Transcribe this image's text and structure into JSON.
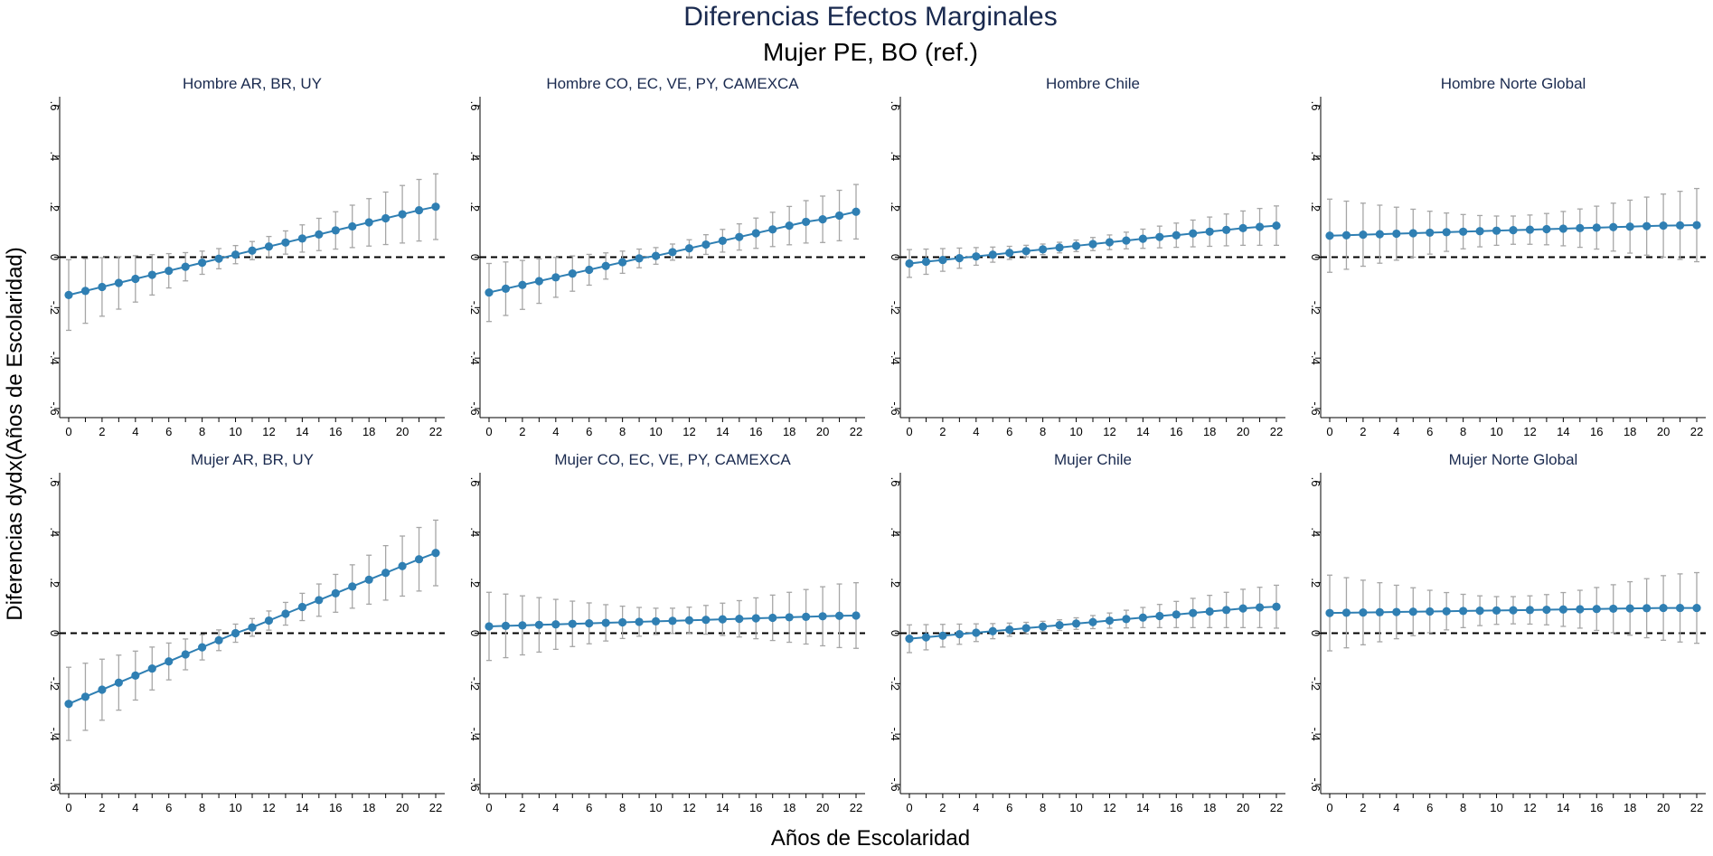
{
  "figure": {
    "title": "Diferencias Efectos Marginales",
    "subtitle": "Mujer PE, BO (ref.)",
    "xlabel": "Años de Escolaridad",
    "ylabel": "Diferencias dydx(Años de Escolaridad)"
  },
  "colors": {
    "marker": "#2f7fb3",
    "ci": "#a6a6a6",
    "title": "#1a2a4f",
    "reference_line": "#000000"
  },
  "chart_data": [
    {
      "type": "line",
      "title": "Hombre AR, BR, UY",
      "x": [
        0,
        1,
        2,
        3,
        4,
        5,
        6,
        7,
        8,
        9,
        10,
        11,
        12,
        13,
        14,
        15,
        16,
        17,
        18,
        19,
        20,
        21,
        22
      ],
      "y": [
        -0.15,
        -0.134,
        -0.118,
        -0.102,
        -0.086,
        -0.07,
        -0.054,
        -0.038,
        -0.022,
        -0.006,
        0.01,
        0.026,
        0.042,
        0.058,
        0.074,
        0.09,
        0.106,
        0.122,
        0.138,
        0.154,
        0.17,
        0.186,
        0.2
      ],
      "ci_halfwidth": [
        0.14,
        0.128,
        0.116,
        0.104,
        0.092,
        0.08,
        0.068,
        0.056,
        0.046,
        0.04,
        0.036,
        0.036,
        0.04,
        0.046,
        0.054,
        0.064,
        0.074,
        0.084,
        0.094,
        0.104,
        0.114,
        0.122,
        0.13
      ],
      "xlim": [
        0,
        22
      ],
      "xticks": [
        0,
        2,
        4,
        6,
        8,
        10,
        12,
        14,
        16,
        18,
        20,
        22
      ],
      "ylim": [
        -0.6,
        0.6
      ],
      "ytick_labels": [
        "-.6",
        "-.4",
        "-.2",
        "0",
        ".2",
        ".4",
        ".6"
      ],
      "reference_line": 0,
      "grid": false
    },
    {
      "type": "line",
      "title": "Hombre CO, EC, VE, PY, CAMEXCA",
      "x": [
        0,
        1,
        2,
        3,
        4,
        5,
        6,
        7,
        8,
        9,
        10,
        11,
        12,
        13,
        14,
        15,
        16,
        17,
        18,
        19,
        20,
        21,
        22
      ],
      "y": [
        -0.14,
        -0.125,
        -0.11,
        -0.095,
        -0.08,
        -0.065,
        -0.05,
        -0.035,
        -0.02,
        -0.005,
        0.005,
        0.02,
        0.035,
        0.05,
        0.065,
        0.08,
        0.095,
        0.11,
        0.125,
        0.14,
        0.15,
        0.165,
        0.18
      ],
      "ci_halfwidth": [
        0.115,
        0.106,
        0.097,
        0.088,
        0.079,
        0.07,
        0.061,
        0.052,
        0.044,
        0.037,
        0.033,
        0.032,
        0.034,
        0.039,
        0.045,
        0.052,
        0.06,
        0.068,
        0.076,
        0.084,
        0.092,
        0.1,
        0.108
      ],
      "xlim": [
        0,
        22
      ],
      "xticks": [
        0,
        2,
        4,
        6,
        8,
        10,
        12,
        14,
        16,
        18,
        20,
        22
      ],
      "ylim": [
        -0.6,
        0.6
      ],
      "ytick_labels": [
        "-.6",
        "-.4",
        "-.2",
        "0",
        ".2",
        ".4",
        ".6"
      ],
      "reference_line": 0,
      "grid": false
    },
    {
      "type": "line",
      "title": "Hombre Chile",
      "x": [
        0,
        1,
        2,
        3,
        4,
        5,
        6,
        7,
        8,
        9,
        10,
        11,
        12,
        13,
        14,
        15,
        16,
        17,
        18,
        19,
        20,
        21,
        22
      ],
      "y": [
        -0.025,
        -0.018,
        -0.011,
        -0.004,
        0.003,
        0.01,
        0.017,
        0.024,
        0.031,
        0.038,
        0.045,
        0.052,
        0.059,
        0.066,
        0.073,
        0.08,
        0.087,
        0.094,
        0.101,
        0.108,
        0.115,
        0.12,
        0.125
      ],
      "ci_halfwidth": [
        0.055,
        0.05,
        0.045,
        0.04,
        0.035,
        0.03,
        0.026,
        0.023,
        0.021,
        0.021,
        0.023,
        0.026,
        0.029,
        0.033,
        0.038,
        0.043,
        0.048,
        0.053,
        0.058,
        0.063,
        0.068,
        0.073,
        0.078
      ],
      "xlim": [
        0,
        22
      ],
      "xticks": [
        0,
        2,
        4,
        6,
        8,
        10,
        12,
        14,
        16,
        18,
        20,
        22
      ],
      "ylim": [
        -0.6,
        0.6
      ],
      "ytick_labels": [
        "-.6",
        "-.4",
        "-.2",
        "0",
        ".2",
        ".4",
        ".6"
      ],
      "reference_line": 0,
      "grid": false
    },
    {
      "type": "line",
      "title": "Hombre Norte Global",
      "x": [
        0,
        1,
        2,
        3,
        4,
        5,
        6,
        7,
        8,
        9,
        10,
        11,
        12,
        13,
        14,
        15,
        16,
        17,
        18,
        19,
        20,
        21,
        22
      ],
      "y": [
        0.085,
        0.087,
        0.089,
        0.091,
        0.093,
        0.095,
        0.097,
        0.099,
        0.101,
        0.103,
        0.105,
        0.107,
        0.109,
        0.111,
        0.113,
        0.115,
        0.117,
        0.119,
        0.121,
        0.123,
        0.125,
        0.126,
        0.127
      ],
      "ci_halfwidth": [
        0.145,
        0.135,
        0.125,
        0.115,
        0.105,
        0.095,
        0.085,
        0.076,
        0.068,
        0.062,
        0.058,
        0.056,
        0.058,
        0.062,
        0.068,
        0.076,
        0.085,
        0.095,
        0.105,
        0.115,
        0.125,
        0.135,
        0.145
      ],
      "xlim": [
        0,
        22
      ],
      "xticks": [
        0,
        2,
        4,
        6,
        8,
        10,
        12,
        14,
        16,
        18,
        20,
        22
      ],
      "ylim": [
        -0.6,
        0.6
      ],
      "ytick_labels": [
        "-.6",
        "-.4",
        "-.2",
        "0",
        ".2",
        ".4",
        ".6"
      ],
      "reference_line": 0,
      "grid": false
    },
    {
      "type": "line",
      "title": "Mujer AR, BR, UY",
      "x": [
        0,
        1,
        2,
        3,
        4,
        5,
        6,
        7,
        8,
        9,
        10,
        11,
        12,
        13,
        14,
        15,
        16,
        17,
        18,
        19,
        20,
        21,
        22
      ],
      "y": [
        -0.28,
        -0.252,
        -0.224,
        -0.196,
        -0.168,
        -0.14,
        -0.112,
        -0.084,
        -0.056,
        -0.028,
        0.0,
        0.023,
        0.05,
        0.077,
        0.104,
        0.131,
        0.158,
        0.185,
        0.212,
        0.239,
        0.266,
        0.293,
        0.318
      ],
      "ci_halfwidth": [
        0.145,
        0.133,
        0.121,
        0.109,
        0.097,
        0.085,
        0.073,
        0.061,
        0.05,
        0.041,
        0.036,
        0.035,
        0.038,
        0.045,
        0.054,
        0.064,
        0.075,
        0.086,
        0.097,
        0.108,
        0.119,
        0.126,
        0.13
      ],
      "xlim": [
        0,
        22
      ],
      "xticks": [
        0,
        2,
        4,
        6,
        8,
        10,
        12,
        14,
        16,
        18,
        20,
        22
      ],
      "ylim": [
        -0.6,
        0.6
      ],
      "ytick_labels": [
        "-.6",
        "-.4",
        "-.2",
        "0",
        ".2",
        ".4",
        ".6"
      ],
      "reference_line": 0,
      "grid": false
    },
    {
      "type": "line",
      "title": "Mujer CO, EC, VE, PY, CAMEXCA",
      "x": [
        0,
        1,
        2,
        3,
        4,
        5,
        6,
        7,
        8,
        9,
        10,
        11,
        12,
        13,
        14,
        15,
        16,
        17,
        18,
        19,
        20,
        21,
        22
      ],
      "y": [
        0.027,
        0.029,
        0.031,
        0.033,
        0.035,
        0.037,
        0.039,
        0.041,
        0.043,
        0.045,
        0.047,
        0.049,
        0.051,
        0.053,
        0.055,
        0.057,
        0.059,
        0.061,
        0.063,
        0.065,
        0.067,
        0.069,
        0.07
      ],
      "ci_halfwidth": [
        0.135,
        0.126,
        0.117,
        0.108,
        0.099,
        0.09,
        0.081,
        0.072,
        0.064,
        0.057,
        0.052,
        0.05,
        0.052,
        0.057,
        0.064,
        0.072,
        0.081,
        0.09,
        0.099,
        0.108,
        0.117,
        0.126,
        0.13
      ],
      "xlim": [
        0,
        22
      ],
      "xticks": [
        0,
        2,
        4,
        6,
        8,
        10,
        12,
        14,
        16,
        18,
        20,
        22
      ],
      "ylim": [
        -0.6,
        0.6
      ],
      "ytick_labels": [
        "-.6",
        "-.4",
        "-.2",
        "0",
        ".2",
        ".4",
        ".6"
      ],
      "reference_line": 0,
      "grid": false
    },
    {
      "type": "line",
      "title": "Mujer Chile",
      "x": [
        0,
        1,
        2,
        3,
        4,
        5,
        6,
        7,
        8,
        9,
        10,
        11,
        12,
        13,
        14,
        15,
        16,
        17,
        18,
        19,
        20,
        21,
        22
      ],
      "y": [
        -0.022,
        -0.016,
        -0.01,
        -0.004,
        0.002,
        0.008,
        0.014,
        0.02,
        0.026,
        0.032,
        0.038,
        0.044,
        0.05,
        0.056,
        0.062,
        0.068,
        0.074,
        0.08,
        0.086,
        0.092,
        0.098,
        0.102,
        0.105
      ],
      "ci_halfwidth": [
        0.055,
        0.05,
        0.045,
        0.04,
        0.035,
        0.03,
        0.026,
        0.023,
        0.021,
        0.021,
        0.023,
        0.026,
        0.03,
        0.035,
        0.04,
        0.046,
        0.052,
        0.058,
        0.064,
        0.07,
        0.076,
        0.08,
        0.085
      ],
      "xlim": [
        0,
        22
      ],
      "xticks": [
        0,
        2,
        4,
        6,
        8,
        10,
        12,
        14,
        16,
        18,
        20,
        22
      ],
      "ylim": [
        -0.6,
        0.6
      ],
      "ytick_labels": [
        "-.6",
        "-.4",
        "-.2",
        "0",
        ".2",
        ".4",
        ".6"
      ],
      "reference_line": 0,
      "grid": false
    },
    {
      "type": "line",
      "title": "Mujer Norte Global",
      "x": [
        0,
        1,
        2,
        3,
        4,
        5,
        6,
        7,
        8,
        9,
        10,
        11,
        12,
        13,
        14,
        15,
        16,
        17,
        18,
        19,
        20,
        21,
        22
      ],
      "y": [
        0.08,
        0.081,
        0.082,
        0.083,
        0.084,
        0.085,
        0.086,
        0.087,
        0.088,
        0.089,
        0.09,
        0.091,
        0.092,
        0.093,
        0.094,
        0.095,
        0.096,
        0.097,
        0.098,
        0.099,
        0.1,
        0.1,
        0.1
      ],
      "ci_halfwidth": [
        0.15,
        0.139,
        0.128,
        0.117,
        0.106,
        0.095,
        0.084,
        0.074,
        0.066,
        0.059,
        0.055,
        0.054,
        0.056,
        0.06,
        0.067,
        0.075,
        0.085,
        0.095,
        0.106,
        0.117,
        0.128,
        0.135,
        0.14
      ],
      "xlim": [
        0,
        22
      ],
      "xticks": [
        0,
        2,
        4,
        6,
        8,
        10,
        12,
        14,
        16,
        18,
        20,
        22
      ],
      "ylim": [
        -0.6,
        0.6
      ],
      "ytick_labels": [
        "-.6",
        "-.4",
        "-.2",
        "0",
        ".2",
        ".4",
        ".6"
      ],
      "reference_line": 0,
      "grid": false
    }
  ]
}
